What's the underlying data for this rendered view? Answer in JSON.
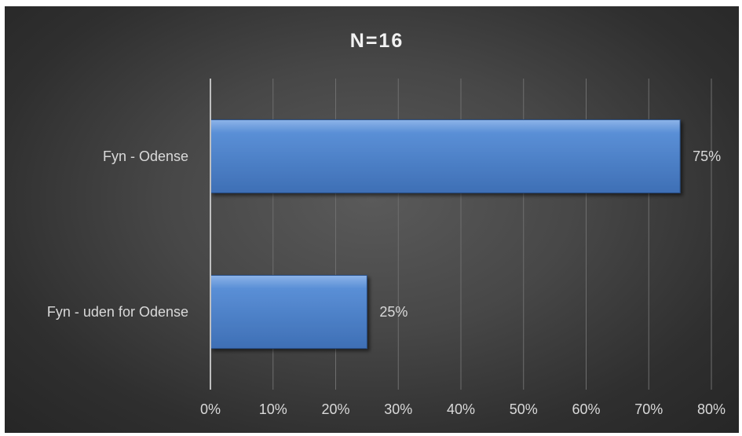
{
  "chart_data": {
    "type": "bar",
    "orientation": "horizontal",
    "title": "N=16",
    "categories": [
      "Fyn - Odense",
      "Fyn - uden for Odense"
    ],
    "values": [
      75,
      25
    ],
    "value_labels": [
      "75%",
      "25%"
    ],
    "xlim": [
      0,
      80
    ],
    "xticks": [
      0,
      10,
      20,
      30,
      40,
      50,
      60,
      70,
      80
    ],
    "xtick_labels": [
      "0%",
      "10%",
      "20%",
      "30%",
      "40%",
      "50%",
      "60%",
      "70%",
      "80%"
    ],
    "xlabel": "",
    "ylabel": "",
    "grid": "vertical",
    "legend": "none",
    "colors": {
      "bar_top": "#8db4e8",
      "bar_mid": "#5a8fd6",
      "bar_bottom": "#3e6fb5",
      "bar_edge": "#2a4f87",
      "background": "#3a3a3a",
      "gridline": "#6e6e6e",
      "axis": "#bfbfbf",
      "text": "#d9d9d9"
    }
  }
}
